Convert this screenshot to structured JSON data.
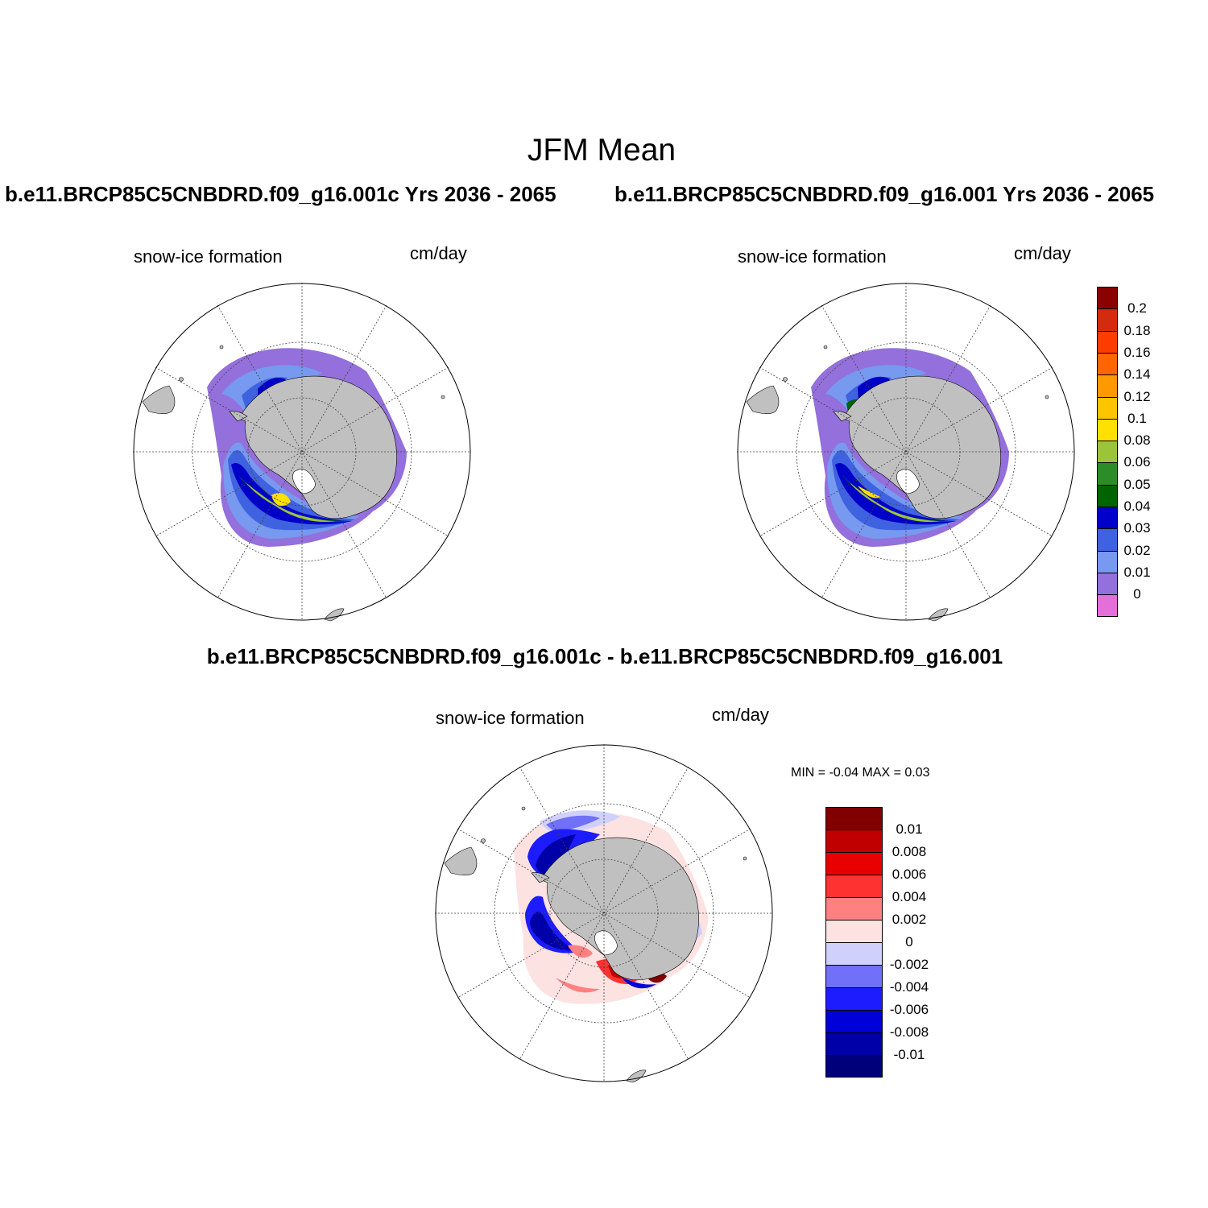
{
  "figure": {
    "title": "JFM Mean",
    "diff_title": "b.e11.BRCP85C5CNBDRD.f09_g16.001c - b.e11.BRCP85C5CNBDRD.f09_g16.001"
  },
  "panels": [
    {
      "case_title": "b.e11.BRCP85C5CNBDRD.f09_g16.001c  Yrs 2036 - 2065",
      "variable": "snow-ice formation",
      "units": "cm/day"
    },
    {
      "case_title": "b.e11.BRCP85C5CNBDRD.f09_g16.001  Yrs 2036 - 2065",
      "variable": "snow-ice formation",
      "units": "cm/day"
    },
    {
      "variable": "snow-ice formation",
      "units": "cm/day",
      "min_max": "MIN =  -0.04 MAX =   0.03"
    }
  ],
  "colorbar_abs": {
    "labels": [
      "0.2",
      "0.18",
      "0.16",
      "0.14",
      "0.12",
      "0.1",
      "0.08",
      "0.06",
      "0.05",
      "0.04",
      "0.03",
      "0.02",
      "0.01",
      "0"
    ],
    "colors": [
      "#8b0000",
      "#d42a0e",
      "#ff3c00",
      "#ff6600",
      "#ff9900",
      "#ffc300",
      "#ffe000",
      "#9cc43a",
      "#2c8c28",
      "#006400",
      "#0000c8",
      "#3f62e0",
      "#7799f0",
      "#9370db",
      "#e370d8"
    ]
  },
  "colorbar_diff": {
    "labels": [
      "0.01",
      "0.008",
      "0.006",
      "0.004",
      "0.002",
      "0",
      "-0.002",
      "-0.004",
      "-0.006",
      "-0.008",
      "-0.01"
    ],
    "colors": [
      "#800000",
      "#c00000",
      "#e80000",
      "#ff3232",
      "#ff8080",
      "#fde2e2",
      "#d0d0fc",
      "#7070f8",
      "#1c1cff",
      "#0000d8",
      "#0000a8",
      "#00007a"
    ]
  }
}
